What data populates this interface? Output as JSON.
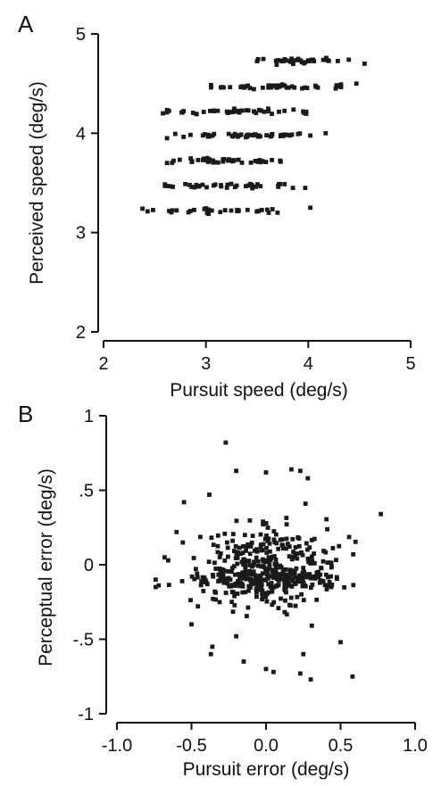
{
  "chart_data": [
    {
      "panel": "A",
      "type": "scatter",
      "xlabel": "Pursuit speed (deg/s)",
      "ylabel": "Perceived speed (deg/s)",
      "xlim": [
        2,
        5
      ],
      "ylim": [
        2,
        5
      ],
      "xticks": [
        2,
        3,
        4,
        5
      ],
      "xtick_labels": [
        "2",
        "3",
        "4",
        "5"
      ],
      "yticks": [
        2,
        3,
        4,
        5
      ],
      "ytick_labels": [
        "2",
        "3",
        "4",
        "5"
      ],
      "grid": false,
      "marker": "square",
      "bands": [
        {
          "y": 3.22,
          "x_min": 2.38,
          "x_max": 4.02,
          "count": 30,
          "outliers": [
            [
              2.38,
              3.24
            ],
            [
              3.7,
              3.2
            ],
            [
              4.02,
              3.25
            ]
          ]
        },
        {
          "y": 3.47,
          "x_min": 2.55,
          "x_max": 3.97,
          "count": 38,
          "outliers": [
            [
              3.85,
              3.45
            ],
            [
              3.97,
              3.45
            ]
          ]
        },
        {
          "y": 3.72,
          "x_min": 2.62,
          "x_max": 3.88,
          "count": 44,
          "outliers": [
            [
              2.62,
              3.7
            ]
          ]
        },
        {
          "y": 3.98,
          "x_min": 2.65,
          "x_max": 4.17,
          "count": 46,
          "outliers": [
            [
              2.62,
              3.95
            ],
            [
              4.17,
              4.0
            ]
          ]
        },
        {
          "y": 4.22,
          "x_min": 2.57,
          "x_max": 4.13,
          "count": 46,
          "outliers": [
            [
              2.58,
              4.2
            ]
          ]
        },
        {
          "y": 4.47,
          "x_min": 3.0,
          "x_max": 4.47,
          "count": 48,
          "outliers": [
            [
              4.47,
              4.5
            ]
          ]
        },
        {
          "y": 4.73,
          "x_min": 3.45,
          "x_max": 4.55,
          "count": 34,
          "outliers": [
            [
              4.55,
              4.7
            ]
          ]
        }
      ]
    },
    {
      "panel": "B",
      "type": "scatter",
      "xlabel": "Pursuit error (deg/s)",
      "ylabel": "Perceptual error (deg/s)",
      "xlim": [
        -1.0,
        1.0
      ],
      "ylim": [
        -1,
        1
      ],
      "xticks": [
        -1.0,
        -0.5,
        0.0,
        0.5,
        1.0
      ],
      "xtick_labels": [
        "-1.0",
        "-0.5",
        "0.0",
        "0.5",
        "1.0"
      ],
      "yticks": [
        -1,
        -0.5,
        0,
        0.5,
        1
      ],
      "ytick_labels": [
        "-1",
        "-.5",
        "0",
        ".5",
        "1"
      ],
      "grid": false,
      "marker": "square",
      "cloud": {
        "x_center": 0.0,
        "x_spread": 0.23,
        "y_center": -0.02,
        "y_spread": 0.14,
        "count": 470
      },
      "outliers": [
        [
          -0.27,
          0.82
        ],
        [
          -0.2,
          0.63
        ],
        [
          0.0,
          0.62
        ],
        [
          0.17,
          0.64
        ],
        [
          0.23,
          0.63
        ],
        [
          0.28,
          0.58
        ],
        [
          -0.38,
          0.47
        ],
        [
          -0.55,
          0.42
        ],
        [
          0.77,
          0.34
        ],
        [
          -0.68,
          0.05
        ],
        [
          -0.74,
          -0.1
        ],
        [
          -0.74,
          -0.15
        ],
        [
          -0.5,
          -0.4
        ],
        [
          -0.36,
          -0.55
        ],
        [
          -0.37,
          -0.6
        ],
        [
          -0.15,
          -0.65
        ],
        [
          0.0,
          -0.7
        ],
        [
          0.05,
          -0.72
        ],
        [
          0.23,
          -0.73
        ],
        [
          0.3,
          -0.77
        ],
        [
          0.58,
          -0.75
        ],
        [
          0.5,
          -0.52
        ],
        [
          -0.2,
          -0.48
        ],
        [
          0.25,
          -0.6
        ],
        [
          -0.6,
          0.22
        ]
      ]
    }
  ],
  "labels": {
    "panel_a": "A",
    "panel_b": "B"
  }
}
